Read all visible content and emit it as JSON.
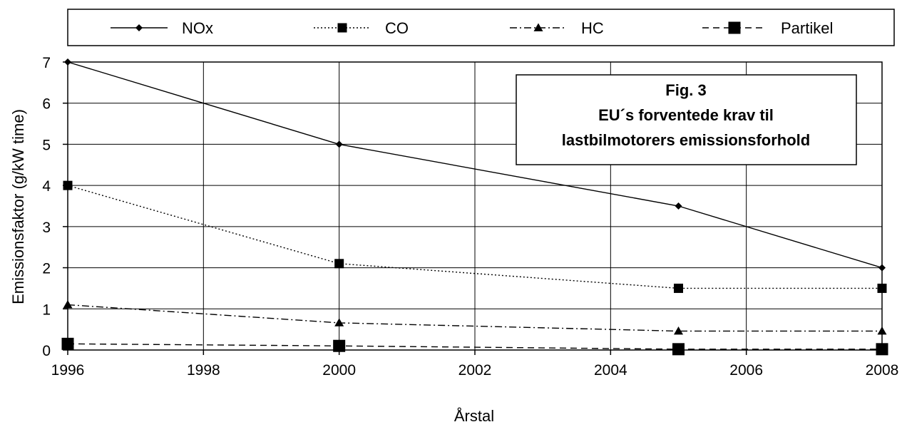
{
  "chart_data": {
    "type": "line",
    "title_lines": [
      "Fig. 3",
      "EU´s forventede krav til",
      "lastbilmotorers emissionsforhold"
    ],
    "xlabel": "Årstal",
    "ylabel": "Emissionsfaktor (g/kW time)",
    "xlim": [
      1996,
      2008
    ],
    "ylim": [
      0,
      7
    ],
    "xticks": [
      1996,
      1998,
      2000,
      2002,
      2004,
      2006,
      2008
    ],
    "yticks": [
      0,
      1,
      2,
      3,
      4,
      5,
      6,
      7
    ],
    "grid": true,
    "legend_position": "top",
    "series": [
      {
        "name": "NOx",
        "marker": "diamond",
        "dash": "solid",
        "marker_size": "small",
        "points": [
          [
            1996,
            7.0
          ],
          [
            2000,
            5.0
          ],
          [
            2005,
            3.5
          ],
          [
            2008,
            2.0
          ]
        ]
      },
      {
        "name": "CO",
        "marker": "square",
        "dash": "dotted",
        "marker_size": "medium",
        "points": [
          [
            1996,
            4.0
          ],
          [
            2000,
            2.1
          ],
          [
            2005,
            1.5
          ],
          [
            2008,
            1.5
          ]
        ]
      },
      {
        "name": "HC",
        "marker": "triangle",
        "dash": "dash-dot",
        "marker_size": "medium",
        "points": [
          [
            1996,
            1.1
          ],
          [
            2000,
            0.66
          ],
          [
            2005,
            0.46
          ],
          [
            2008,
            0.46
          ]
        ]
      },
      {
        "name": "Partikel",
        "marker": "square",
        "dash": "dashed",
        "marker_size": "large",
        "points": [
          [
            1996,
            0.15
          ],
          [
            2000,
            0.1
          ],
          [
            2005,
            0.02
          ],
          [
            2008,
            0.02
          ]
        ]
      }
    ]
  }
}
